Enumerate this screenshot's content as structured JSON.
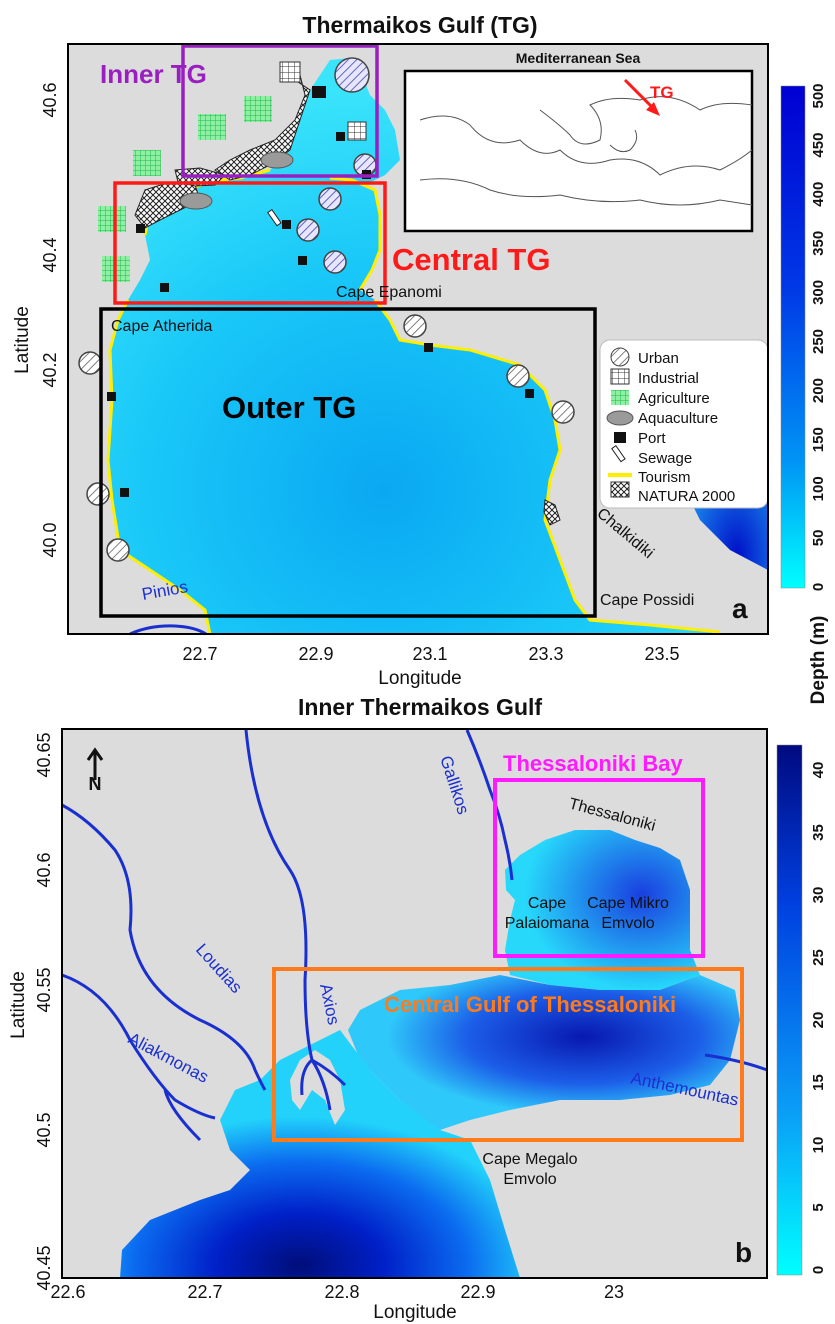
{
  "panel_a": {
    "title": "Thermaikos Gulf (TG)",
    "xlabel": "Longitude",
    "ylabel": "Latitude",
    "x_ticks": [
      "22.7",
      "22.9",
      "23.1",
      "23.3",
      "23.5"
    ],
    "y_ticks": [
      "40.0",
      "40.2",
      "40.4",
      "40.6"
    ],
    "letter": "a",
    "regions": {
      "inner": "Inner TG",
      "central": "Central TG",
      "outer": "Outer TG"
    },
    "region_colors": {
      "inner": "#9a1fc0",
      "central": "#ff1a1a",
      "outer": "#000000"
    },
    "places": {
      "epanomi": "Cape Epanomi",
      "atherida": "Cape Atherida",
      "chalkidiki": "Chalkidiki",
      "possidi": "Cape Possidi"
    },
    "rivers": {
      "pinios": "Pinios"
    },
    "inset": {
      "title": "Mediterranean Sea",
      "marker": "TG"
    },
    "legend": [
      {
        "label": "Urban",
        "icon": "urban-hatched-circle-icon"
      },
      {
        "label": "Industrial",
        "icon": "industrial-grid-icon"
      },
      {
        "label": "Agriculture",
        "icon": "agriculture-green-square-icon"
      },
      {
        "label": "Aquaculture",
        "icon": "aquaculture-gray-ellipse-icon"
      },
      {
        "label": "Port",
        "icon": "port-black-square-icon"
      },
      {
        "label": "Sewage",
        "icon": "sewage-pipe-icon"
      },
      {
        "label": "Tourism",
        "icon": "tourism-yellow-line-icon"
      },
      {
        "label": "NATURA 2000",
        "icon": "natura-crosshatch-icon"
      }
    ],
    "colorbar": {
      "ticks": [
        "0",
        "50",
        "100",
        "150",
        "200",
        "250",
        "300",
        "350",
        "400",
        "450",
        "500"
      ],
      "label": "Depth (m)"
    }
  },
  "panel_b": {
    "title": "Inner Thermaikos Gulf",
    "xlabel": "Longitude",
    "ylabel": "Latitude",
    "x_ticks": [
      "22.6",
      "22.7",
      "22.8",
      "22.9",
      "23"
    ],
    "y_ticks": [
      "40.45",
      "40.5",
      "40.55",
      "40.6",
      "40.65"
    ],
    "letter": "b",
    "north_label": "N",
    "boxes": {
      "thessaloniki_bay": "Thessaloniki Bay",
      "central_gulf": "Central Gulf of Thessaloniki"
    },
    "box_colors": {
      "thessaloniki_bay": "#ff1aff",
      "central_gulf": "#ff7a1a"
    },
    "places": {
      "thessaloniki": "Thessaloniki",
      "palaiomana_1": "Cape",
      "palaiomana_2": "Palaiomana",
      "mikro_1": "Cape Mikro",
      "mikro_2": "Emvolo",
      "megalo_1": "Cape Megalo",
      "megalo_2": "Emvolo"
    },
    "rivers": {
      "gallikos": "Gallikos",
      "loudias": "Loudias",
      "axios": "Axios",
      "aliakmonas": "Aliakmonas",
      "anthemountas": "Anthemountas"
    },
    "colorbar": {
      "ticks": [
        "0",
        "5",
        "10",
        "15",
        "20",
        "25",
        "30",
        "35",
        "40"
      ]
    }
  },
  "colors": {
    "land": "#dcdcdc",
    "shallow": "#00e5ff",
    "deep": "#0000cc",
    "river": "#1a2fd0",
    "tourism": "#ffee00"
  }
}
